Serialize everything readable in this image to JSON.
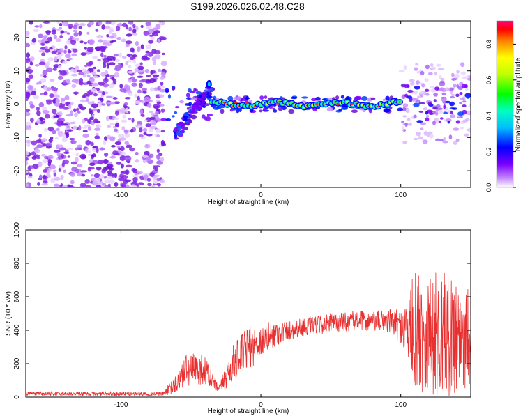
{
  "title": "S199.2026.026.02.48.C28",
  "colors": {
    "axis": "#000000",
    "snr_line": "#e83030",
    "background": "#ffffff",
    "noise_purple": "#8a2be2"
  },
  "chart_data": [
    {
      "type": "heatmap",
      "title": "S199.2026.026.02.48.C28",
      "xlabel": "Height of straight line (km)",
      "ylabel": "Frequency (Hz)",
      "xlim": [
        -168,
        150
      ],
      "ylim": [
        -25,
        25
      ],
      "x_ticks": [
        -100,
        0,
        100
      ],
      "y_ticks": [
        -20,
        -10,
        0,
        10,
        20
      ],
      "colorbar": {
        "label": "Normalized spectral amplitude",
        "range": [
          0.0,
          0.93
        ],
        "ticks": [
          "0.0",
          "0.2",
          "0.4",
          "0.6",
          "0.8"
        ],
        "tick_values": [
          0.0,
          0.2,
          0.4,
          0.6,
          0.8
        ]
      },
      "features": {
        "noise_region_km": [
          -168,
          -75
        ],
        "signal_line_freq_hz": 0,
        "strong_signal_km": [
          -35,
          100
        ]
      }
    },
    {
      "type": "line",
      "xlabel": "Height of straight line (km)",
      "ylabel": "SNR (10 * v/v)",
      "xlim": [
        -168,
        150
      ],
      "ylim": [
        0,
        1000
      ],
      "x_ticks": [
        -100,
        0,
        100
      ],
      "y_ticks": [
        0,
        200,
        400,
        600,
        800,
        1000
      ],
      "series": [
        {
          "name": "SNR",
          "envelope_x": [
            -168,
            -70,
            -60,
            -55,
            -45,
            -40,
            -35,
            -30,
            -25,
            -20,
            -15,
            -10,
            -5,
            0,
            5,
            10,
            15,
            20,
            30,
            40,
            50,
            60,
            70,
            80,
            90,
            100,
            110,
            120,
            130,
            140,
            150
          ],
          "envelope_mean": [
            20,
            20,
            80,
            150,
            170,
            160,
            100,
            45,
            120,
            200,
            240,
            290,
            310,
            330,
            360,
            380,
            390,
            400,
            420,
            430,
            440,
            450,
            460,
            450,
            460,
            420,
            400,
            380,
            370,
            380,
            380
          ],
          "envelope_spread": [
            12,
            12,
            60,
            100,
            100,
            90,
            60,
            20,
            80,
            110,
            120,
            130,
            120,
            100,
            90,
            80,
            70,
            60,
            55,
            55,
            60,
            60,
            60,
            60,
            70,
            100,
            350,
            380,
            380,
            360,
            320
          ]
        }
      ]
    }
  ]
}
